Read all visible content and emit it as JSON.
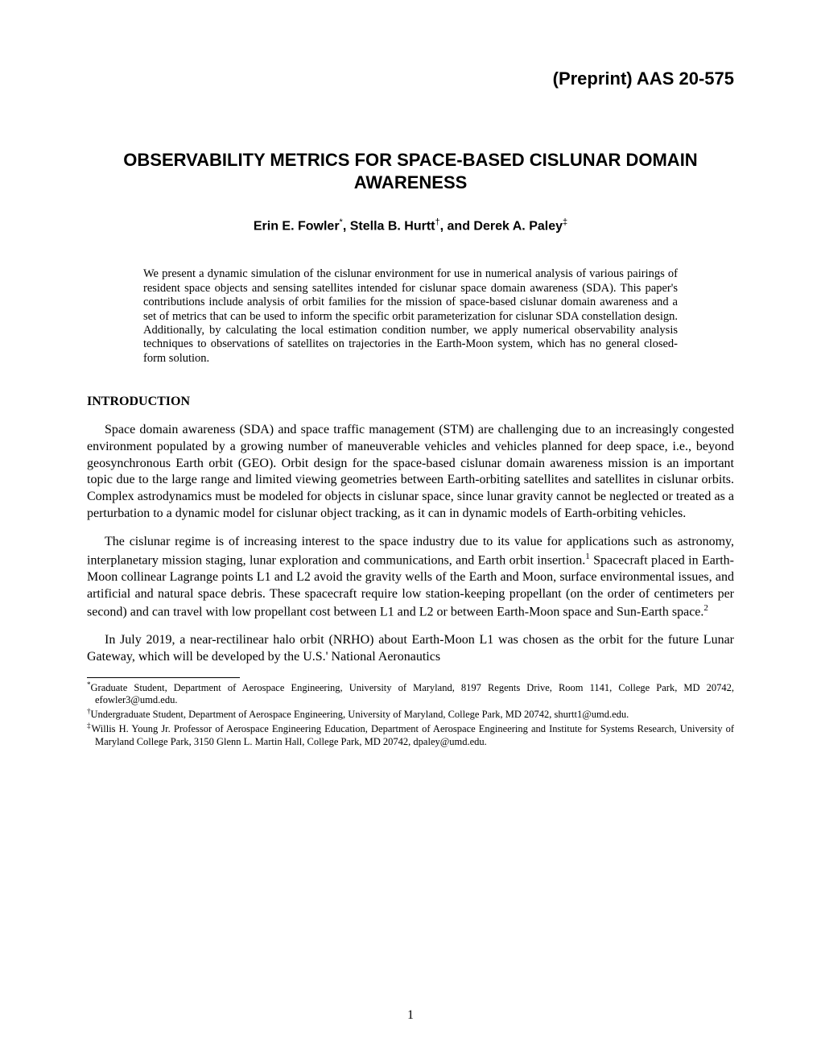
{
  "header": {
    "preprint": "(Preprint) AAS 20-575"
  },
  "title": "OBSERVABILITY METRICS FOR SPACE-BASED CISLUNAR DOMAIN AWARENESS",
  "authors": {
    "line": "Erin E. Fowler*, Stella B. Hurtt†, and Derek A. Paley‡",
    "a1_name": "Erin E. Fowler",
    "a1_mark": "*",
    "sep1": ", ",
    "a2_name": "Stella B. Hurtt",
    "a2_mark": "†",
    "sep2": ", and ",
    "a3_name": "Derek A. Paley",
    "a3_mark": "‡"
  },
  "abstract": "We present a dynamic simulation of the cislunar environment for use in numerical analysis of various pairings of resident space objects and sensing satellites intended for cislunar space domain awareness (SDA). This paper's contributions include analysis of orbit families for the mission of space-based cislunar domain awareness and a set of metrics that can be used to inform the specific orbit parameterization for cislunar SDA constellation design. Additionally, by calculating the local estimation condition number, we apply numerical observability analysis techniques to observations of satellites on trajectories in the Earth-Moon system, which has no general closed-form solution.",
  "sections": {
    "introduction_heading": "INTRODUCTION"
  },
  "paragraphs": {
    "p1": "Space domain awareness (SDA) and space traffic management (STM) are challenging due to an increasingly congested environment populated by a growing number of maneuverable vehicles and vehicles planned for deep space, i.e., beyond geosynchronous Earth orbit (GEO). Orbit design for the space-based cislunar domain awareness mission is an important topic due to the large range and limited viewing geometries between Earth-orbiting satellites and satellites in cislunar orbits. Complex astrodynamics must be modeled for objects in cislunar space, since lunar gravity cannot be neglected or treated as a perturbation to a dynamic model for cislunar object tracking, as it can in dynamic models of Earth-orbiting vehicles.",
    "p2_part1": "The cislunar regime is of increasing interest to the space industry due to its value for applications such as astronomy, interplanetary mission staging, lunar exploration and communications, and Earth orbit insertion.",
    "p2_ref1": "1",
    "p2_part2": " Spacecraft placed in Earth-Moon collinear Lagrange points L1 and L2 avoid the gravity wells of the Earth and Moon, surface environmental issues, and artificial and natural space debris. These spacecraft require low station-keeping propellant (on the order of centimeters per second) and can travel with low propellant cost between L1 and L2 or between Earth-Moon space and Sun-Earth space.",
    "p2_ref2": "2",
    "p3": "In July 2019, a near-rectilinear halo orbit (NRHO) about Earth-Moon L1 was chosen as the orbit for the future Lunar Gateway, which will be developed by the U.S.' National Aeronautics"
  },
  "footnotes": {
    "f1_mark": "*",
    "f1_text": "Graduate Student, Department of Aerospace Engineering, University of Maryland, 8197 Regents Drive, Room 1141, College Park, MD 20742, efowler3@umd.edu.",
    "f2_mark": "†",
    "f2_text": "Undergraduate Student, Department of Aerospace Engineering, University of Maryland, College Park, MD 20742, shurtt1@umd.edu.",
    "f3_mark": "‡",
    "f3_text": "Willis H. Young Jr. Professor of Aerospace Engineering Education, Department of Aerospace Engineering and Institute for Systems Research, University of Maryland College Park, 3150 Glenn L. Martin Hall, College Park, MD 20742, dpaley@umd.edu."
  },
  "page_number": "1"
}
